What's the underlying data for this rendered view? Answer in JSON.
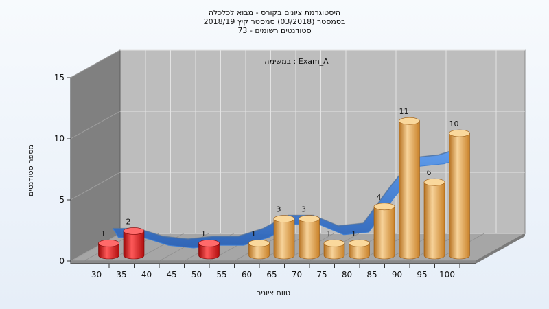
{
  "chart_data": {
    "type": "bar",
    "title_lines": [
      "היסטוגרמת ציונים בקורס - מבוא לכלכלה",
      "בסמסטר  (03/2018)  סמסטר קיץ 2018/19",
      "סטודנטים רשומים - 73"
    ],
    "annotation": "במשימה : Exam_A",
    "xlabel": "טווח ציונים",
    "ylabel": "מספר סטודנטים",
    "ylim": [
      0,
      15
    ],
    "yticks": [
      "0",
      "5",
      "10",
      "15"
    ],
    "categories": [
      "30",
      "35",
      "40",
      "45",
      "50",
      "55",
      "60",
      "65",
      "70",
      "75",
      "80",
      "85",
      "90",
      "95",
      "100"
    ],
    "values": [
      1,
      2,
      0,
      0,
      1,
      0,
      1,
      3,
      3,
      1,
      1,
      4,
      11,
      6,
      10
    ],
    "colors": {
      "fail": "#d41414",
      "pass": "#e8a142",
      "curve": "#3b7fd8",
      "curve_shadow": "#666666"
    },
    "fail_threshold": 55,
    "grid": true,
    "legend": "none"
  }
}
